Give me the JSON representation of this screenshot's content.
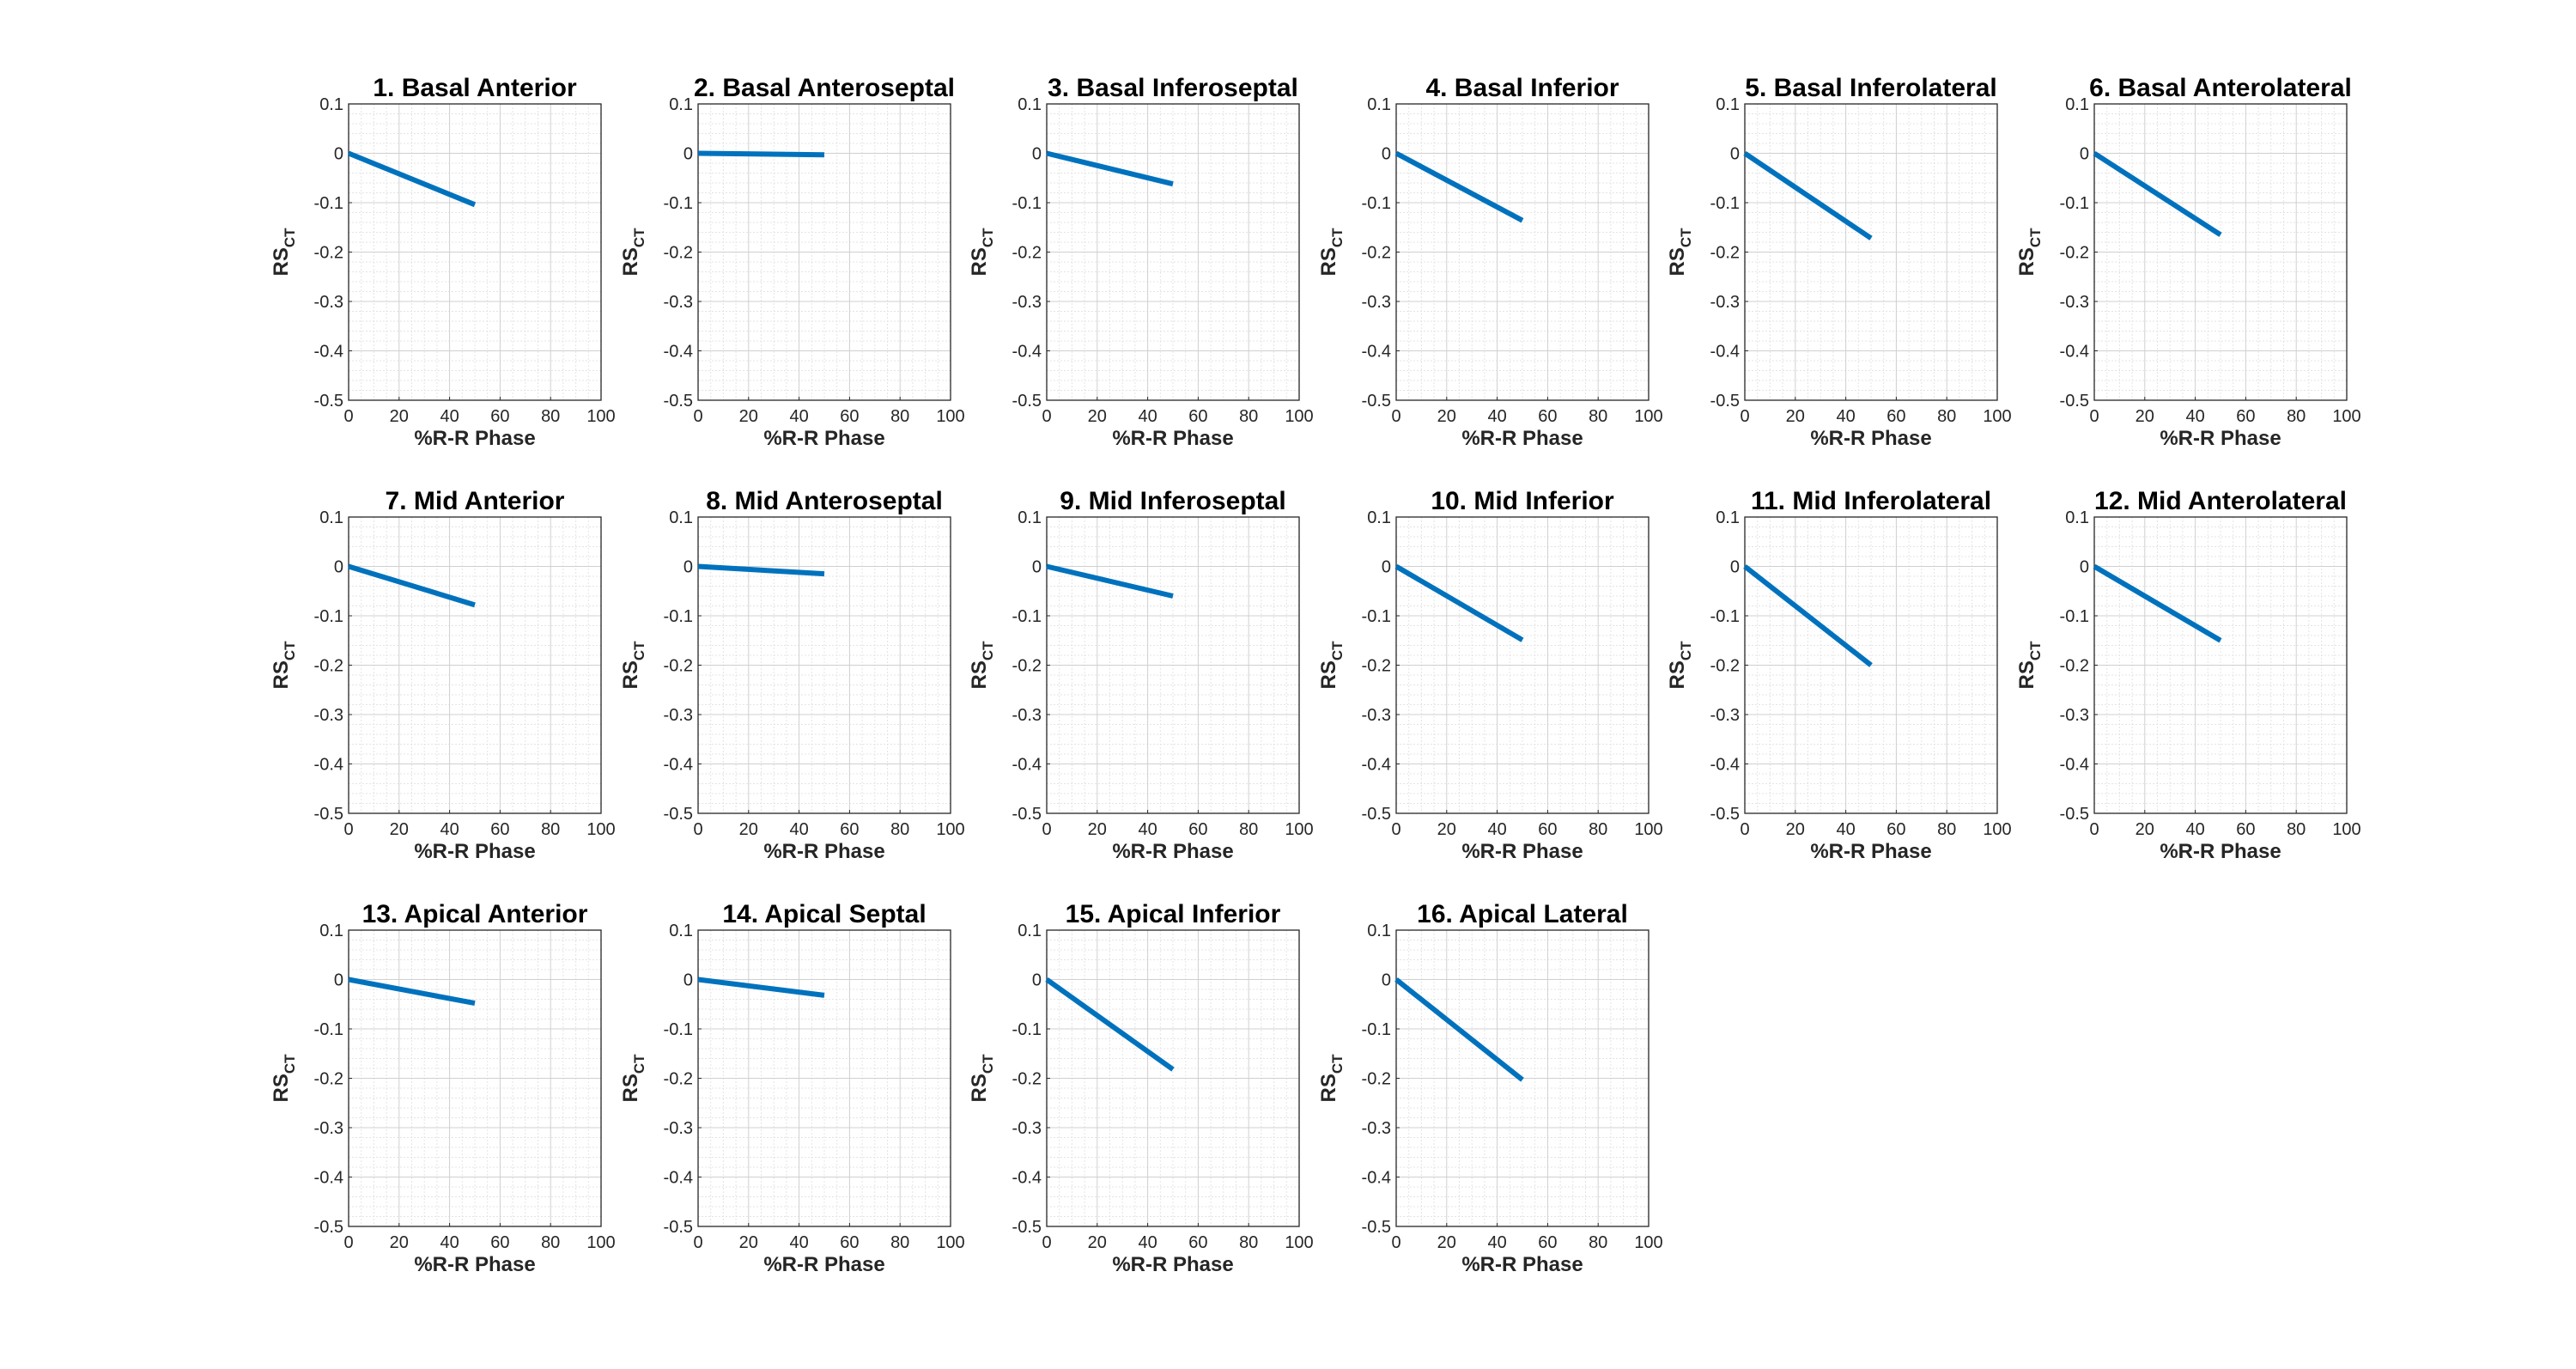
{
  "chart_data": {
    "type": "line",
    "layout": {
      "rows": 3,
      "cols": 6
    },
    "series_color": "#0072BD",
    "x_ticks": [
      0,
      20,
      40,
      60,
      80,
      100
    ],
    "y_ticks": [
      0.1,
      0,
      -0.1,
      -0.2,
      -0.3,
      -0.4,
      -0.5
    ],
    "xlim": [
      0,
      100
    ],
    "ylim": [
      -0.5,
      0.1
    ],
    "grid": true,
    "minor_grid": true,
    "panels": [
      {
        "title": "1. Basal Anterior",
        "xlabel": "%R-R Phase",
        "ylabel_main": "RS",
        "ylabel_sub": "CT",
        "x": [
          0,
          50
        ],
        "y": [
          0,
          -0.104
        ]
      },
      {
        "title": "2. Basal Anteroseptal",
        "xlabel": "%R-R Phase",
        "ylabel_main": "RS",
        "ylabel_sub": "CT",
        "x": [
          0,
          50
        ],
        "y": [
          0,
          -0.003
        ]
      },
      {
        "title": "3. Basal Inferoseptal",
        "xlabel": "%R-R Phase",
        "ylabel_main": "RS",
        "ylabel_sub": "CT",
        "x": [
          0,
          50
        ],
        "y": [
          0,
          -0.062
        ]
      },
      {
        "title": "4. Basal Inferior",
        "xlabel": "%R-R Phase",
        "ylabel_main": "RS",
        "ylabel_sub": "CT",
        "x": [
          0,
          50
        ],
        "y": [
          0,
          -0.136
        ]
      },
      {
        "title": "5. Basal Inferolateral",
        "xlabel": "%R-R Phase",
        "ylabel_main": "RS",
        "ylabel_sub": "CT",
        "x": [
          0,
          50
        ],
        "y": [
          0,
          -0.172
        ]
      },
      {
        "title": "6. Basal Anterolateral",
        "xlabel": "%R-R Phase",
        "ylabel_main": "RS",
        "ylabel_sub": "CT",
        "x": [
          0,
          50
        ],
        "y": [
          0,
          -0.165
        ]
      },
      {
        "title": "7. Mid Anterior",
        "xlabel": "%R-R Phase",
        "ylabel_main": "RS",
        "ylabel_sub": "CT",
        "x": [
          0,
          50
        ],
        "y": [
          0,
          -0.078
        ]
      },
      {
        "title": "8. Mid Anteroseptal",
        "xlabel": "%R-R Phase",
        "ylabel_main": "RS",
        "ylabel_sub": "CT",
        "x": [
          0,
          50
        ],
        "y": [
          0,
          -0.015
        ]
      },
      {
        "title": "9. Mid Inferoseptal",
        "xlabel": "%R-R Phase",
        "ylabel_main": "RS",
        "ylabel_sub": "CT",
        "x": [
          0,
          50
        ],
        "y": [
          0,
          -0.06
        ]
      },
      {
        "title": "10. Mid Inferior",
        "xlabel": "%R-R Phase",
        "ylabel_main": "RS",
        "ylabel_sub": "CT",
        "x": [
          0,
          50
        ],
        "y": [
          0,
          -0.149
        ]
      },
      {
        "title": "11. Mid Inferolateral",
        "xlabel": "%R-R Phase",
        "ylabel_main": "RS",
        "ylabel_sub": "CT",
        "x": [
          0,
          50
        ],
        "y": [
          0,
          -0.2
        ]
      },
      {
        "title": "12. Mid Anterolateral",
        "xlabel": "%R-R Phase",
        "ylabel_main": "RS",
        "ylabel_sub": "CT",
        "x": [
          0,
          50
        ],
        "y": [
          0,
          -0.15
        ]
      },
      {
        "title": "13. Apical Anterior",
        "xlabel": "%R-R Phase",
        "ylabel_main": "RS",
        "ylabel_sub": "CT",
        "x": [
          0,
          50
        ],
        "y": [
          0,
          -0.048
        ]
      },
      {
        "title": "14. Apical Septal",
        "xlabel": "%R-R Phase",
        "ylabel_main": "RS",
        "ylabel_sub": "CT",
        "x": [
          0,
          50
        ],
        "y": [
          0,
          -0.032
        ]
      },
      {
        "title": "15. Apical Inferior",
        "xlabel": "%R-R Phase",
        "ylabel_main": "RS",
        "ylabel_sub": "CT",
        "x": [
          0,
          50
        ],
        "y": [
          0,
          -0.182
        ]
      },
      {
        "title": "16. Apical Lateral",
        "xlabel": "%R-R Phase",
        "ylabel_main": "RS",
        "ylabel_sub": "CT",
        "x": [
          0,
          50
        ],
        "y": [
          0,
          -0.203
        ]
      }
    ]
  }
}
